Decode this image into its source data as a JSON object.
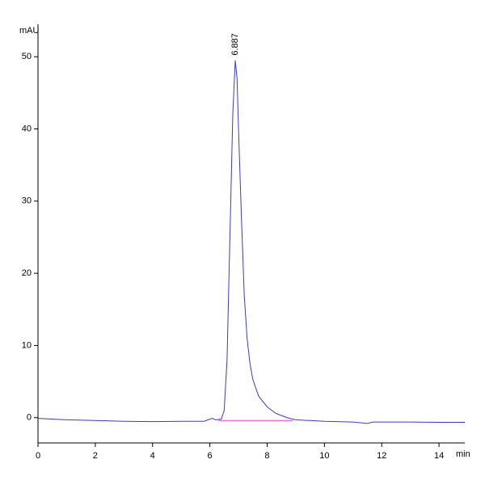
{
  "chart_data": {
    "type": "line",
    "y_label": "mAU",
    "x_label": "min",
    "xlim": [
      0,
      14.9
    ],
    "ylim": [
      -3.5,
      54.5
    ],
    "xticks": [
      0,
      2,
      4,
      6,
      8,
      10,
      12,
      14
    ],
    "yticks": [
      0,
      10,
      20,
      30,
      40,
      50
    ],
    "series": [
      {
        "color": "#3a3ad0",
        "x": [
          0,
          1,
          2,
          3,
          4,
          5,
          5.8,
          6.0,
          6.1,
          6.2,
          6.4,
          6.5,
          6.6,
          6.7,
          6.8,
          6.887,
          6.95,
          7.0,
          7.1,
          7.2,
          7.3,
          7.4,
          7.5,
          7.7,
          8.0,
          8.3,
          8.7,
          9.0,
          9.5,
          10,
          11,
          11.5,
          11.7,
          12,
          13,
          14,
          14.9
        ],
        "values": [
          -0.1,
          -0.3,
          -0.4,
          -0.5,
          -0.55,
          -0.5,
          -0.5,
          -0.2,
          -0.1,
          -0.3,
          -0.2,
          1,
          8,
          25,
          42,
          49.5,
          47,
          40,
          28,
          17,
          11,
          7.5,
          5.3,
          3,
          1.5,
          0.6,
          0,
          -0.3,
          -0.4,
          -0.5,
          -0.6,
          -0.8,
          -0.6,
          -0.6,
          -0.6,
          -0.65,
          -0.65
        ]
      }
    ],
    "baseline": {
      "color": "#e040e0",
      "x": [
        6.3,
        8.9
      ],
      "values": [
        -0.4,
        -0.4
      ]
    },
    "annotations": [
      {
        "label": "6.887",
        "x": 6.887
      }
    ]
  }
}
